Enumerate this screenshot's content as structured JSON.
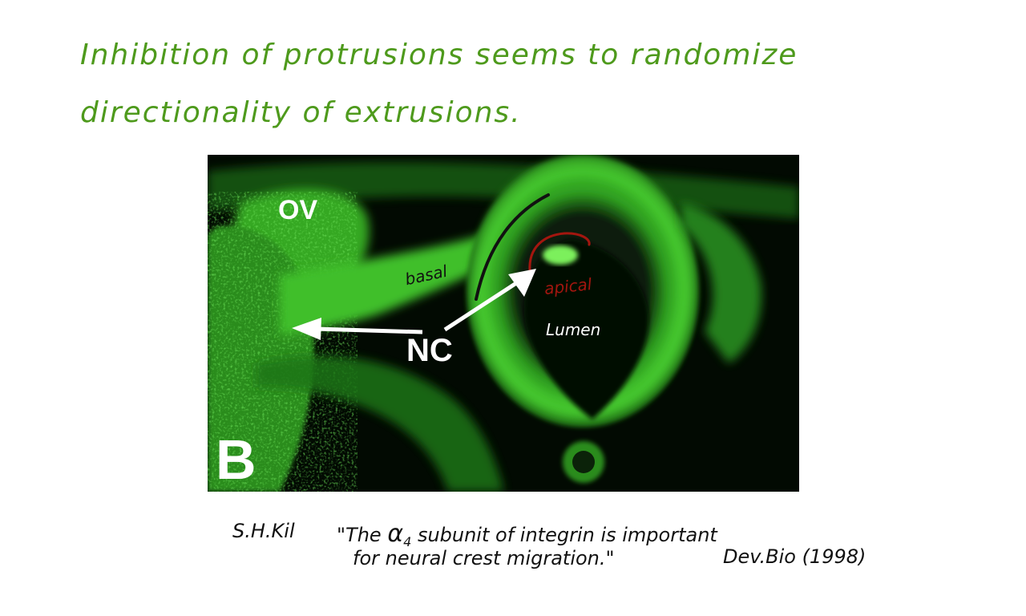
{
  "title": {
    "line1": "Inhibition of protrusions seems to randomize",
    "line2": "directionality of extrusions.",
    "color": "#4e9a1c"
  },
  "figure": {
    "panel_label": "B",
    "labels": {
      "ov": "OV",
      "nc": "NC",
      "basal": "basal",
      "apical": "apical",
      "lumen": "Lumen"
    },
    "colors": {
      "tissue": "#3fbf2a",
      "tissue_dark": "#1b6a14",
      "background": "#020a02",
      "arrow": "#ffffff",
      "basal_mark": "#111111",
      "apical_mark": "#a3160f"
    }
  },
  "citation": {
    "author": "S.H.Kil",
    "title_prefix": "\"The",
    "alpha_symbol": "α",
    "alpha_subscript": "4",
    "title_rest": "subunit of integrin is important",
    "title_line2": "for neural crest migration.\"",
    "journal": "Dev.Bio (1998)"
  }
}
